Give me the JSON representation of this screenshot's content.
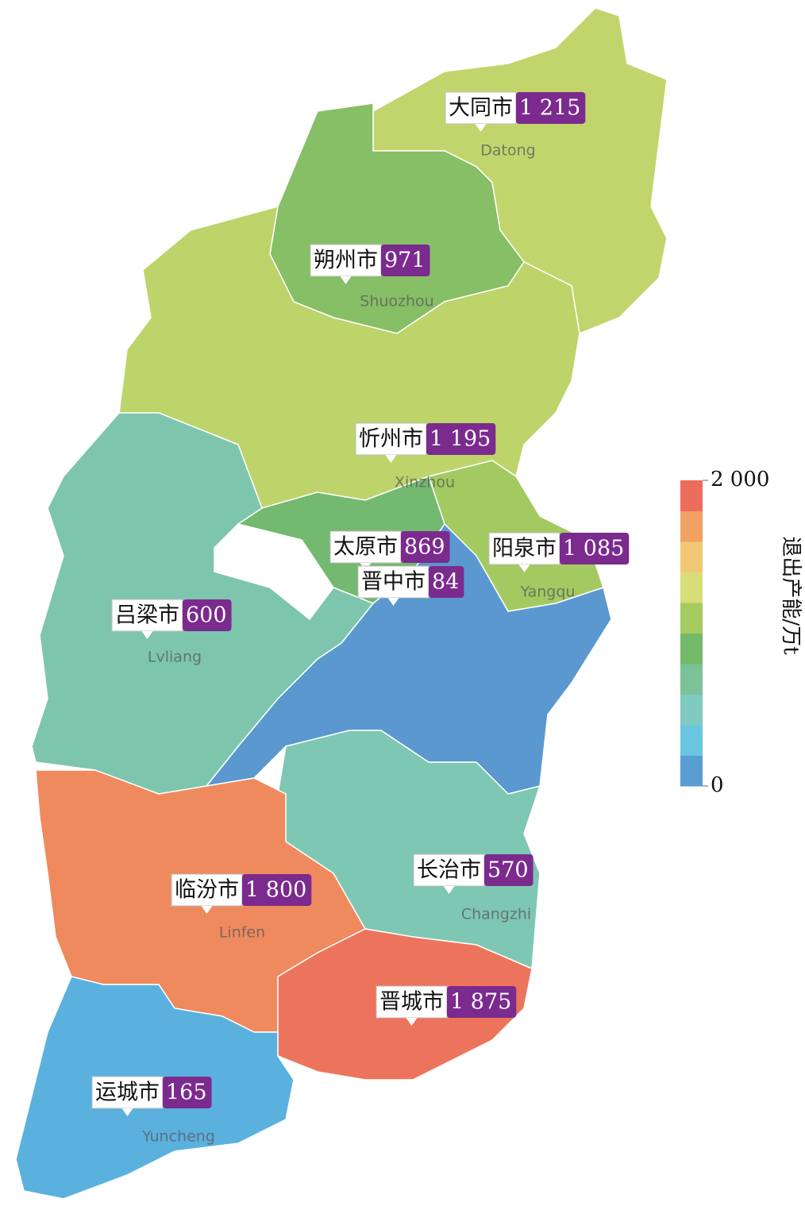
{
  "regions": [
    {
      "name": "大同市",
      "value": 1215,
      "value_label": "1 215",
      "pinyin": "Datong"
    },
    {
      "name": "朔州市",
      "value": 971,
      "pinyin": "Shuozhou"
    },
    {
      "name": "忻州市",
      "value": 1195,
      "value_label": "1 195",
      "pinyin": "Xinzhou"
    },
    {
      "name": "阳泉市",
      "value": 1085,
      "value_label": "1 085",
      "pinyin": "Yangqu"
    },
    {
      "name": "太原市",
      "value": 869
    },
    {
      "name": "晋中市",
      "value": 84
    },
    {
      "name": "吕梁市",
      "value": 600,
      "pinyin": "Lvliang"
    },
    {
      "name": "长治市",
      "value": 570,
      "pinyin": "Changzhi"
    },
    {
      "name": "临汾市",
      "value": 1800,
      "value_label": "1 800",
      "pinyin": "Linfen"
    },
    {
      "name": "晋城市",
      "value": 1875,
      "value_label": "1 875"
    },
    {
      "name": "运城市",
      "value": 165,
      "pinyin": "Yuncheng"
    }
  ],
  "legend": {
    "title": "退出产能/万t",
    "range": [
      0,
      2000
    ],
    "ticks": [
      0,
      {
        "value": 2000,
        "label": "2 000"
      }
    ],
    "colors": [
      "#5a7ec0",
      "#5bc3e8",
      "#80cccc",
      "#7cc4a0",
      "#72b86a",
      "#a8cc60",
      "#e0e07a",
      "#f5c070",
      "#f0905e",
      "#e8505a"
    ]
  }
}
